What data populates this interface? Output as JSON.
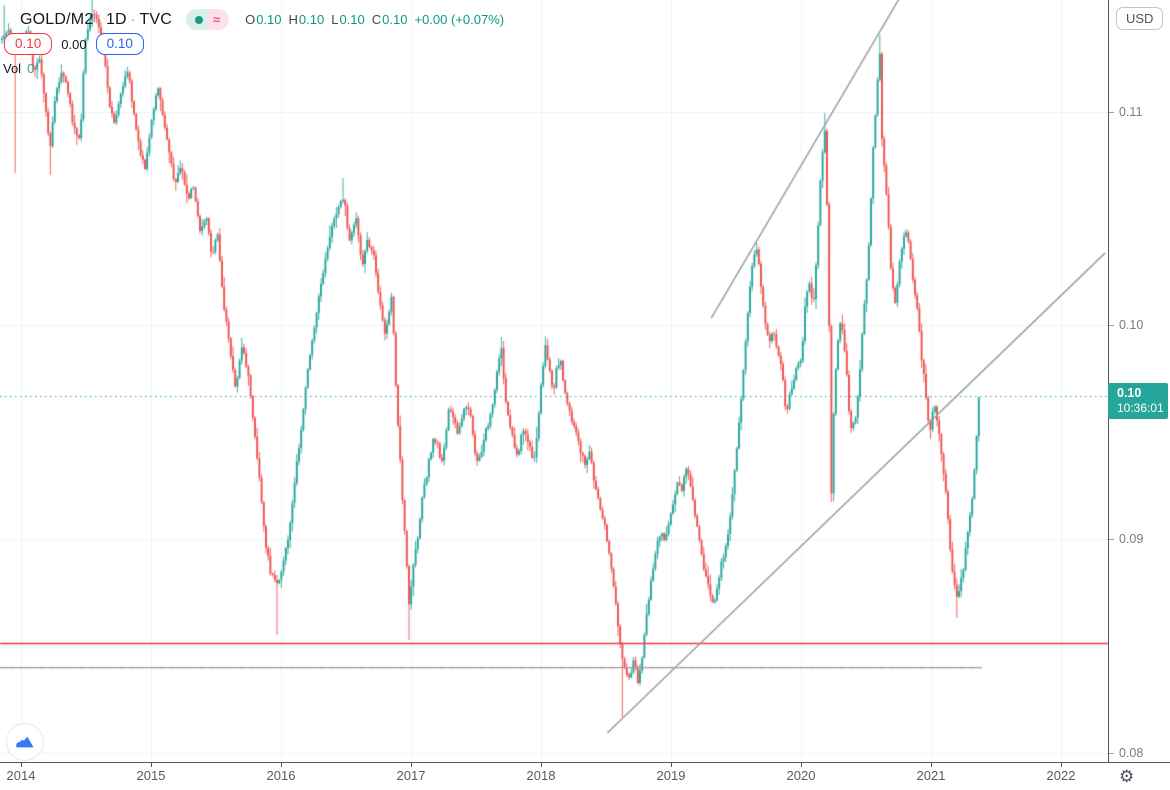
{
  "header": {
    "symbol": "GOLD/M2",
    "sep": "·",
    "interval": "1D",
    "exchange": "TVC",
    "approx_symbol": "≈",
    "ohlc": {
      "o_label": "O",
      "o": "0.10",
      "h_label": "H",
      "h": "0.10",
      "l_label": "L",
      "l": "0.10",
      "c_label": "C",
      "c": "0.10",
      "change": "+0.00 (+0.07%)"
    },
    "sell_price": "0.10",
    "spread": "0.00",
    "buy_price": "0.10",
    "vol_label": "Vol",
    "vol_value": "0"
  },
  "price_axis": {
    "currency": "USD",
    "ticks": [
      "0.11",
      "0.10",
      "0.09",
      "0.08"
    ],
    "tick_prices": [
      0.11,
      0.1,
      0.09,
      0.08
    ],
    "last": {
      "price": "0.10",
      "time": "10:36:01"
    }
  },
  "time_axis": {
    "years": [
      "2014",
      "2015",
      "2016",
      "2017",
      "2018",
      "2019",
      "2020",
      "2021",
      "2022"
    ],
    "year_values": [
      2014,
      2015,
      2016,
      2017,
      2018,
      2019,
      2020,
      2021,
      2022
    ]
  },
  "colors": {
    "up": "#26a69a",
    "down": "#ef5350",
    "accent_red": "#f23645",
    "accent_blue": "#2962ff",
    "line_gray": "#9a9ca5",
    "grid": "#eef2f8",
    "axis_text": "#787b86",
    "text_dark": "#131722",
    "tag_bg": "#26a69a",
    "logo_blue": "#3179f5"
  },
  "chart_data": {
    "type": "candlestick",
    "title": "GOLD/M2 1D TVC",
    "x_axis": {
      "unit": "year",
      "range": [
        2013.84,
        2022.36
      ]
    },
    "y_axis": {
      "unit": "USD",
      "ticks": [
        0.08,
        0.09,
        0.1,
        0.11
      ],
      "range": [
        0.0796,
        0.1152
      ],
      "position": "right"
    },
    "grid": true,
    "last_price_line": {
      "price": 0.0967,
      "display": "0.10",
      "time": "10:36:01",
      "style": "dotted",
      "color": "#26a69a"
    },
    "horizontal_lines": [
      {
        "price": 0.08513,
        "from": 2013.84,
        "to": 2022.36,
        "color": "#f23645",
        "width": 1.6,
        "dash_overlay": null
      },
      {
        "price": 0.084,
        "from": 2013.84,
        "to": 2021.39,
        "color": "#9a9ca5",
        "width": 1.1,
        "dash_overlay": "#ef5350"
      }
    ],
    "trendlines": [
      {
        "x1": 2019.31,
        "p1": 0.10035,
        "x2": 2020.75,
        "p2": 0.11525,
        "color": "#9a9ca5",
        "width": 1.5
      },
      {
        "x1": 2018.51,
        "p1": 0.08091,
        "x2": 2022.34,
        "p2": 0.1034,
        "color": "#9a9ca5",
        "width": 1.5
      }
    ],
    "key_extremes": [
      {
        "t": 2013.86,
        "p": 0.115,
        "side": "high"
      },
      {
        "t": 2013.95,
        "p": 0.10714,
        "side": "low"
      },
      {
        "t": 2014.22,
        "p": 0.10705,
        "side": "low"
      },
      {
        "t": 2014.54,
        "p": 0.11524,
        "side": "high"
      },
      {
        "t": 2015.97,
        "p": 0.08551,
        "side": "low"
      },
      {
        "t": 2016.48,
        "p": 0.10691,
        "side": "high"
      },
      {
        "t": 2016.98,
        "p": 0.08527,
        "side": "low"
      },
      {
        "t": 2017.69,
        "p": 0.09946,
        "side": "high"
      },
      {
        "t": 2018.62,
        "p": 0.08167,
        "side": "low"
      },
      {
        "t": 2019.66,
        "p": 0.10387,
        "side": "high"
      },
      {
        "t": 2020.18,
        "p": 0.10995,
        "side": "high"
      },
      {
        "t": 2020.23,
        "p": 0.09173,
        "side": "low"
      },
      {
        "t": 2020.6,
        "p": 0.11361,
        "side": "high"
      },
      {
        "t": 2021.2,
        "p": 0.0863,
        "side": "low"
      }
    ],
    "close_path": [
      [
        2013.85,
        0.11337
      ],
      [
        2013.9,
        0.11393
      ],
      [
        2013.95,
        0.11267
      ],
      [
        2013.99,
        0.11314
      ],
      [
        2014.05,
        0.11384
      ],
      [
        2014.09,
        0.11187
      ],
      [
        2014.14,
        0.11253
      ],
      [
        2014.18,
        0.11033
      ],
      [
        2014.22,
        0.10831
      ],
      [
        2014.26,
        0.1108
      ],
      [
        2014.31,
        0.11187
      ],
      [
        2014.35,
        0.11126
      ],
      [
        2014.4,
        0.10925
      ],
      [
        2014.45,
        0.10859
      ],
      [
        2014.49,
        0.11337
      ],
      [
        2014.54,
        0.11468
      ],
      [
        2014.58,
        0.1144
      ],
      [
        2014.63,
        0.1129
      ],
      [
        2014.68,
        0.11033
      ],
      [
        2014.72,
        0.10939
      ],
      [
        2014.77,
        0.11112
      ],
      [
        2014.82,
        0.11197
      ],
      [
        2014.86,
        0.11009
      ],
      [
        2014.91,
        0.10822
      ],
      [
        2014.95,
        0.10728
      ],
      [
        2015.0,
        0.10963
      ],
      [
        2015.05,
        0.11126
      ],
      [
        2015.09,
        0.10963
      ],
      [
        2015.14,
        0.10799
      ],
      [
        2015.18,
        0.10658
      ],
      [
        2015.23,
        0.10752
      ],
      [
        2015.28,
        0.10588
      ],
      [
        2015.32,
        0.10658
      ],
      [
        2015.37,
        0.10447
      ],
      [
        2015.42,
        0.10518
      ],
      [
        2015.46,
        0.1033
      ],
      [
        2015.51,
        0.10424
      ],
      [
        2015.55,
        0.10119
      ],
      [
        2015.6,
        0.09909
      ],
      [
        2015.65,
        0.09698
      ],
      [
        2015.69,
        0.09909
      ],
      [
        2015.74,
        0.09792
      ],
      [
        2015.78,
        0.09557
      ],
      [
        2015.83,
        0.09276
      ],
      [
        2015.88,
        0.08972
      ],
      [
        2015.92,
        0.08831
      ],
      [
        2015.97,
        0.08784
      ],
      [
        2016.02,
        0.08902
      ],
      [
        2016.06,
        0.09042
      ],
      [
        2016.11,
        0.09323
      ],
      [
        2016.15,
        0.0951
      ],
      [
        2016.2,
        0.09792
      ],
      [
        2016.25,
        0.09979
      ],
      [
        2016.29,
        0.10143
      ],
      [
        2016.34,
        0.1033
      ],
      [
        2016.38,
        0.10447
      ],
      [
        2016.43,
        0.10541
      ],
      [
        2016.48,
        0.10611
      ],
      [
        2016.52,
        0.10377
      ],
      [
        2016.57,
        0.10518
      ],
      [
        2016.62,
        0.10283
      ],
      [
        2016.66,
        0.104
      ],
      [
        2016.71,
        0.1033
      ],
      [
        2016.75,
        0.10119
      ],
      [
        2016.8,
        0.09956
      ],
      [
        2016.85,
        0.10166
      ],
      [
        2016.88,
        0.09698
      ],
      [
        2016.91,
        0.09393
      ],
      [
        2016.94,
        0.09089
      ],
      [
        2016.97,
        0.08831
      ],
      [
        2016.98,
        0.08691
      ],
      [
        2017.02,
        0.08902
      ],
      [
        2017.05,
        0.09019
      ],
      [
        2017.08,
        0.09183
      ],
      [
        2017.11,
        0.09276
      ],
      [
        2017.14,
        0.09393
      ],
      [
        2017.17,
        0.09464
      ],
      [
        2017.2,
        0.0944
      ],
      [
        2017.23,
        0.09347
      ],
      [
        2017.26,
        0.09464
      ],
      [
        2017.29,
        0.09628
      ],
      [
        2017.32,
        0.09581
      ],
      [
        2017.35,
        0.09487
      ],
      [
        2017.38,
        0.09557
      ],
      [
        2017.42,
        0.09628
      ],
      [
        2017.45,
        0.09604
      ],
      [
        2017.48,
        0.0944
      ],
      [
        2017.51,
        0.09347
      ],
      [
        2017.54,
        0.09417
      ],
      [
        2017.57,
        0.0951
      ],
      [
        2017.6,
        0.09557
      ],
      [
        2017.63,
        0.09651
      ],
      [
        2017.66,
        0.09792
      ],
      [
        2017.69,
        0.09909
      ],
      [
        2017.72,
        0.09675
      ],
      [
        2017.75,
        0.09557
      ],
      [
        2017.78,
        0.09464
      ],
      [
        2017.82,
        0.0937
      ],
      [
        2017.85,
        0.09534
      ],
      [
        2017.88,
        0.09487
      ],
      [
        2017.91,
        0.0944
      ],
      [
        2017.94,
        0.09347
      ],
      [
        2017.97,
        0.0951
      ],
      [
        2018.0,
        0.09745
      ],
      [
        2018.03,
        0.09909
      ],
      [
        2018.06,
        0.09792
      ],
      [
        2018.09,
        0.09675
      ],
      [
        2018.12,
        0.09816
      ],
      [
        2018.15,
        0.09839
      ],
      [
        2018.18,
        0.09675
      ],
      [
        2018.22,
        0.09581
      ],
      [
        2018.25,
        0.09534
      ],
      [
        2018.28,
        0.09464
      ],
      [
        2018.31,
        0.09393
      ],
      [
        2018.34,
        0.09347
      ],
      [
        2018.37,
        0.09417
      ],
      [
        2018.4,
        0.09276
      ],
      [
        2018.43,
        0.09206
      ],
      [
        2018.46,
        0.09112
      ],
      [
        2018.49,
        0.09065
      ],
      [
        2018.52,
        0.08925
      ],
      [
        2018.55,
        0.08808
      ],
      [
        2018.58,
        0.08644
      ],
      [
        2018.62,
        0.08433
      ],
      [
        2018.65,
        0.08377
      ],
      [
        2018.68,
        0.08339
      ],
      [
        2018.71,
        0.08456
      ],
      [
        2018.74,
        0.08316
      ],
      [
        2018.77,
        0.0841
      ],
      [
        2018.8,
        0.08597
      ],
      [
        2018.83,
        0.08737
      ],
      [
        2018.86,
        0.08878
      ],
      [
        2018.89,
        0.08972
      ],
      [
        2018.92,
        0.09042
      ],
      [
        2018.95,
        0.08972
      ],
      [
        2018.98,
        0.09089
      ],
      [
        2019.02,
        0.09183
      ],
      [
        2019.05,
        0.09276
      ],
      [
        2019.08,
        0.0923
      ],
      [
        2019.11,
        0.09323
      ],
      [
        2019.14,
        0.09286
      ],
      [
        2019.17,
        0.09159
      ],
      [
        2019.2,
        0.09042
      ],
      [
        2019.23,
        0.08925
      ],
      [
        2019.26,
        0.08831
      ],
      [
        2019.29,
        0.08761
      ],
      [
        2019.32,
        0.08691
      ],
      [
        2019.35,
        0.08761
      ],
      [
        2019.38,
        0.08878
      ],
      [
        2019.42,
        0.08972
      ],
      [
        2019.45,
        0.09089
      ],
      [
        2019.48,
        0.09276
      ],
      [
        2019.51,
        0.09464
      ],
      [
        2019.54,
        0.09698
      ],
      [
        2019.57,
        0.09933
      ],
      [
        2019.6,
        0.10166
      ],
      [
        2019.63,
        0.1033
      ],
      [
        2019.66,
        0.10377
      ],
      [
        2019.69,
        0.10166
      ],
      [
        2019.72,
        0.10026
      ],
      [
        2019.75,
        0.09909
      ],
      [
        2019.78,
        0.09979
      ],
      [
        2019.82,
        0.09862
      ],
      [
        2019.85,
        0.09792
      ],
      [
        2019.88,
        0.09581
      ],
      [
        2019.91,
        0.09675
      ],
      [
        2019.94,
        0.09745
      ],
      [
        2019.97,
        0.09816
      ],
      [
        2020.0,
        0.09839
      ],
      [
        2020.03,
        0.10119
      ],
      [
        2020.06,
        0.1019
      ],
      [
        2020.09,
        0.10073
      ],
      [
        2020.12,
        0.10354
      ],
      [
        2020.15,
        0.10728
      ],
      [
        2020.18,
        0.10925
      ],
      [
        2020.2,
        0.10494
      ],
      [
        2020.22,
        0.09745
      ],
      [
        2020.23,
        0.09206
      ],
      [
        2020.25,
        0.09651
      ],
      [
        2020.28,
        0.09933
      ],
      [
        2020.3,
        0.10026
      ],
      [
        2020.32,
        0.09956
      ],
      [
        2020.35,
        0.09768
      ],
      [
        2020.37,
        0.09557
      ],
      [
        2020.39,
        0.0951
      ],
      [
        2020.42,
        0.09581
      ],
      [
        2020.44,
        0.09698
      ],
      [
        2020.46,
        0.09886
      ],
      [
        2020.48,
        0.10073
      ],
      [
        2020.51,
        0.10283
      ],
      [
        2020.53,
        0.10518
      ],
      [
        2020.55,
        0.10822
      ],
      [
        2020.58,
        0.1108
      ],
      [
        2020.6,
        0.11314
      ],
      [
        2020.62,
        0.10869
      ],
      [
        2020.65,
        0.10635
      ],
      [
        2020.67,
        0.10471
      ],
      [
        2020.69,
        0.10237
      ],
      [
        2020.72,
        0.10096
      ],
      [
        2020.74,
        0.10213
      ],
      [
        2020.76,
        0.1033
      ],
      [
        2020.78,
        0.104
      ],
      [
        2020.81,
        0.10438
      ],
      [
        2020.83,
        0.10354
      ],
      [
        2020.85,
        0.10237
      ],
      [
        2020.88,
        0.10119
      ],
      [
        2020.9,
        0.10026
      ],
      [
        2020.92,
        0.09862
      ],
      [
        2020.95,
        0.09721
      ],
      [
        2020.97,
        0.09581
      ],
      [
        2020.99,
        0.0951
      ],
      [
        2021.02,
        0.09628
      ],
      [
        2021.04,
        0.09557
      ],
      [
        2021.06,
        0.09487
      ],
      [
        2021.08,
        0.0937
      ],
      [
        2021.11,
        0.0923
      ],
      [
        2021.13,
        0.09065
      ],
      [
        2021.15,
        0.08902
      ],
      [
        2021.18,
        0.08761
      ],
      [
        2021.2,
        0.08714
      ],
      [
        2021.22,
        0.08808
      ],
      [
        2021.25,
        0.08878
      ],
      [
        2021.27,
        0.08995
      ],
      [
        2021.29,
        0.09089
      ],
      [
        2021.32,
        0.0923
      ],
      [
        2021.34,
        0.09393
      ],
      [
        2021.35,
        0.09534
      ],
      [
        2021.37,
        0.09661
      ]
    ]
  }
}
